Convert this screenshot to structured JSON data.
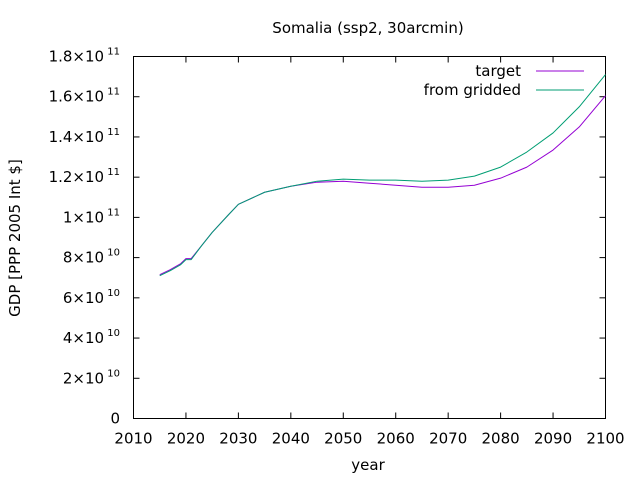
{
  "chart_data": {
    "type": "line",
    "title": "Somalia (ssp2, 30arcmin)",
    "xlabel": "year",
    "ylabel": "GDP [PPP 2005 Int $]",
    "xlim": [
      2010,
      2100
    ],
    "ylim": [
      0,
      180000000000
    ],
    "grid": false,
    "legend_position": "top-right",
    "x_ticks": [
      {
        "value": 2010,
        "label": "2010"
      },
      {
        "value": 2020,
        "label": "2020"
      },
      {
        "value": 2030,
        "label": "2030"
      },
      {
        "value": 2040,
        "label": "2040"
      },
      {
        "value": 2050,
        "label": "2050"
      },
      {
        "value": 2060,
        "label": "2060"
      },
      {
        "value": 2070,
        "label": "2070"
      },
      {
        "value": 2080,
        "label": "2080"
      },
      {
        "value": 2090,
        "label": "2090"
      },
      {
        "value": 2100,
        "label": "2100"
      }
    ],
    "y_ticks": [
      {
        "value": 0,
        "mantissa": "0",
        "exponent": ""
      },
      {
        "value": 20000000000,
        "mantissa": "2×10",
        "exponent": "10"
      },
      {
        "value": 40000000000,
        "mantissa": "4×10",
        "exponent": "10"
      },
      {
        "value": 60000000000,
        "mantissa": "6×10",
        "exponent": "10"
      },
      {
        "value": 80000000000,
        "mantissa": "8×10",
        "exponent": "10"
      },
      {
        "value": 100000000000,
        "mantissa": "1×10",
        "exponent": "11"
      },
      {
        "value": 120000000000,
        "mantissa": "1.2×10",
        "exponent": "11"
      },
      {
        "value": 140000000000,
        "mantissa": "1.4×10",
        "exponent": "11"
      },
      {
        "value": 160000000000,
        "mantissa": "1.6×10",
        "exponent": "11"
      },
      {
        "value": 180000000000,
        "mantissa": "1.8×10",
        "exponent": "11"
      }
    ],
    "series": [
      {
        "name": "target",
        "color": "#9400d3",
        "x": [
          2015,
          2017,
          2019,
          2020,
          2021,
          2023,
          2025,
          2028,
          2030,
          2035,
          2040,
          2045,
          2050,
          2055,
          2060,
          2065,
          2070,
          2075,
          2080,
          2085,
          2090,
          2095,
          2100
        ],
        "y": [
          71500000000,
          74000000000,
          77000000000,
          79500000000,
          79500000000,
          86000000000,
          92500000000,
          101000000000,
          106500000000,
          112500000000,
          115500000000,
          117500000000,
          118000000000,
          117000000000,
          116000000000,
          115000000000,
          115000000000,
          116000000000,
          119500000000,
          125000000000,
          133500000000,
          145000000000,
          160500000000
        ]
      },
      {
        "name": "from gridded",
        "color": "#009e73",
        "x": [
          2015,
          2017,
          2019,
          2020,
          2021,
          2023,
          2025,
          2028,
          2030,
          2035,
          2040,
          2045,
          2050,
          2055,
          2060,
          2065,
          2070,
          2075,
          2080,
          2085,
          2090,
          2095,
          2100
        ],
        "y": [
          71000000000,
          73500000000,
          76500000000,
          79000000000,
          79000000000,
          86000000000,
          92500000000,
          101000000000,
          106500000000,
          112500000000,
          115500000000,
          118000000000,
          119000000000,
          118500000000,
          118500000000,
          118000000000,
          118500000000,
          120500000000,
          125000000000,
          132500000000,
          142000000000,
          155000000000,
          171000000000
        ]
      }
    ]
  }
}
